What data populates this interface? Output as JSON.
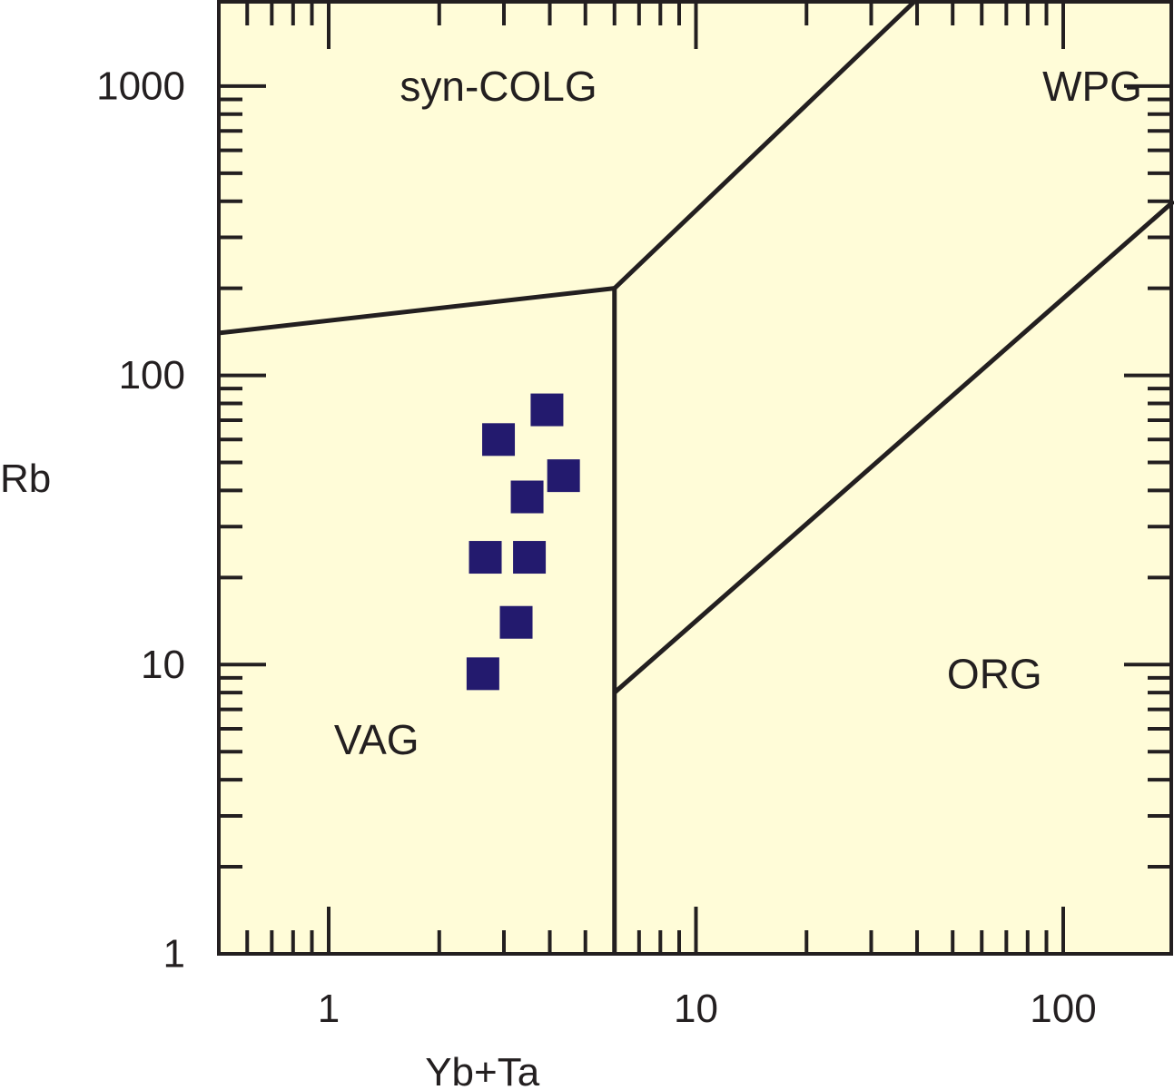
{
  "chart_data": {
    "type": "scatter",
    "title": "",
    "xlabel": "Yb+Ta",
    "ylabel": "Rb",
    "x_scale": "log",
    "y_scale": "log",
    "xlim": [
      0.5,
      200
    ],
    "ylim": [
      1,
      2000
    ],
    "x_tick_labels": [
      {
        "value": 1,
        "label": "1"
      },
      {
        "value": 10,
        "label": "10"
      },
      {
        "value": 100,
        "label": "100"
      }
    ],
    "y_tick_labels": [
      {
        "value": 1,
        "label": "1"
      },
      {
        "value": 10,
        "label": "10"
      },
      {
        "value": 100,
        "label": "100"
      },
      {
        "value": 1000,
        "label": "1000"
      }
    ],
    "fields": [
      {
        "label": "syn-COLG",
        "x": 2.9,
        "y": 1000
      },
      {
        "label": "WPG",
        "x": 120,
        "y": 1000
      },
      {
        "label": "VAG",
        "x": 1.35,
        "y": 5.5
      },
      {
        "label": "ORG",
        "x": 65,
        "y": 9.3
      }
    ],
    "boundaries": [
      {
        "name": "syn-COLG/VAG",
        "x": [
          0.5,
          6
        ],
        "y": [
          140,
          200
        ]
      },
      {
        "name": "VAG/WPG",
        "x": [
          6,
          6
        ],
        "y": [
          1,
          200
        ]
      },
      {
        "name": "syn-COLG/WPG",
        "x": [
          6,
          40
        ],
        "y": [
          200,
          2000
        ]
      },
      {
        "name": "WPG/ORG",
        "x": [
          6,
          200
        ],
        "y": [
          8,
          400
        ]
      }
    ],
    "series": [
      {
        "marker": "square",
        "color": "#231a6e",
        "points": [
          {
            "x": 2.63,
            "y": 9.3
          },
          {
            "x": 3.24,
            "y": 14
          },
          {
            "x": 2.67,
            "y": 23.5
          },
          {
            "x": 3.52,
            "y": 23.5
          },
          {
            "x": 3.47,
            "y": 38
          },
          {
            "x": 4.36,
            "y": 45
          },
          {
            "x": 2.9,
            "y": 60
          },
          {
            "x": 3.93,
            "y": 76
          }
        ]
      }
    ],
    "colors": {
      "plot_background": "#fffcd8",
      "lines": "#231f20",
      "markers": "#231a6e"
    },
    "grid": false
  }
}
